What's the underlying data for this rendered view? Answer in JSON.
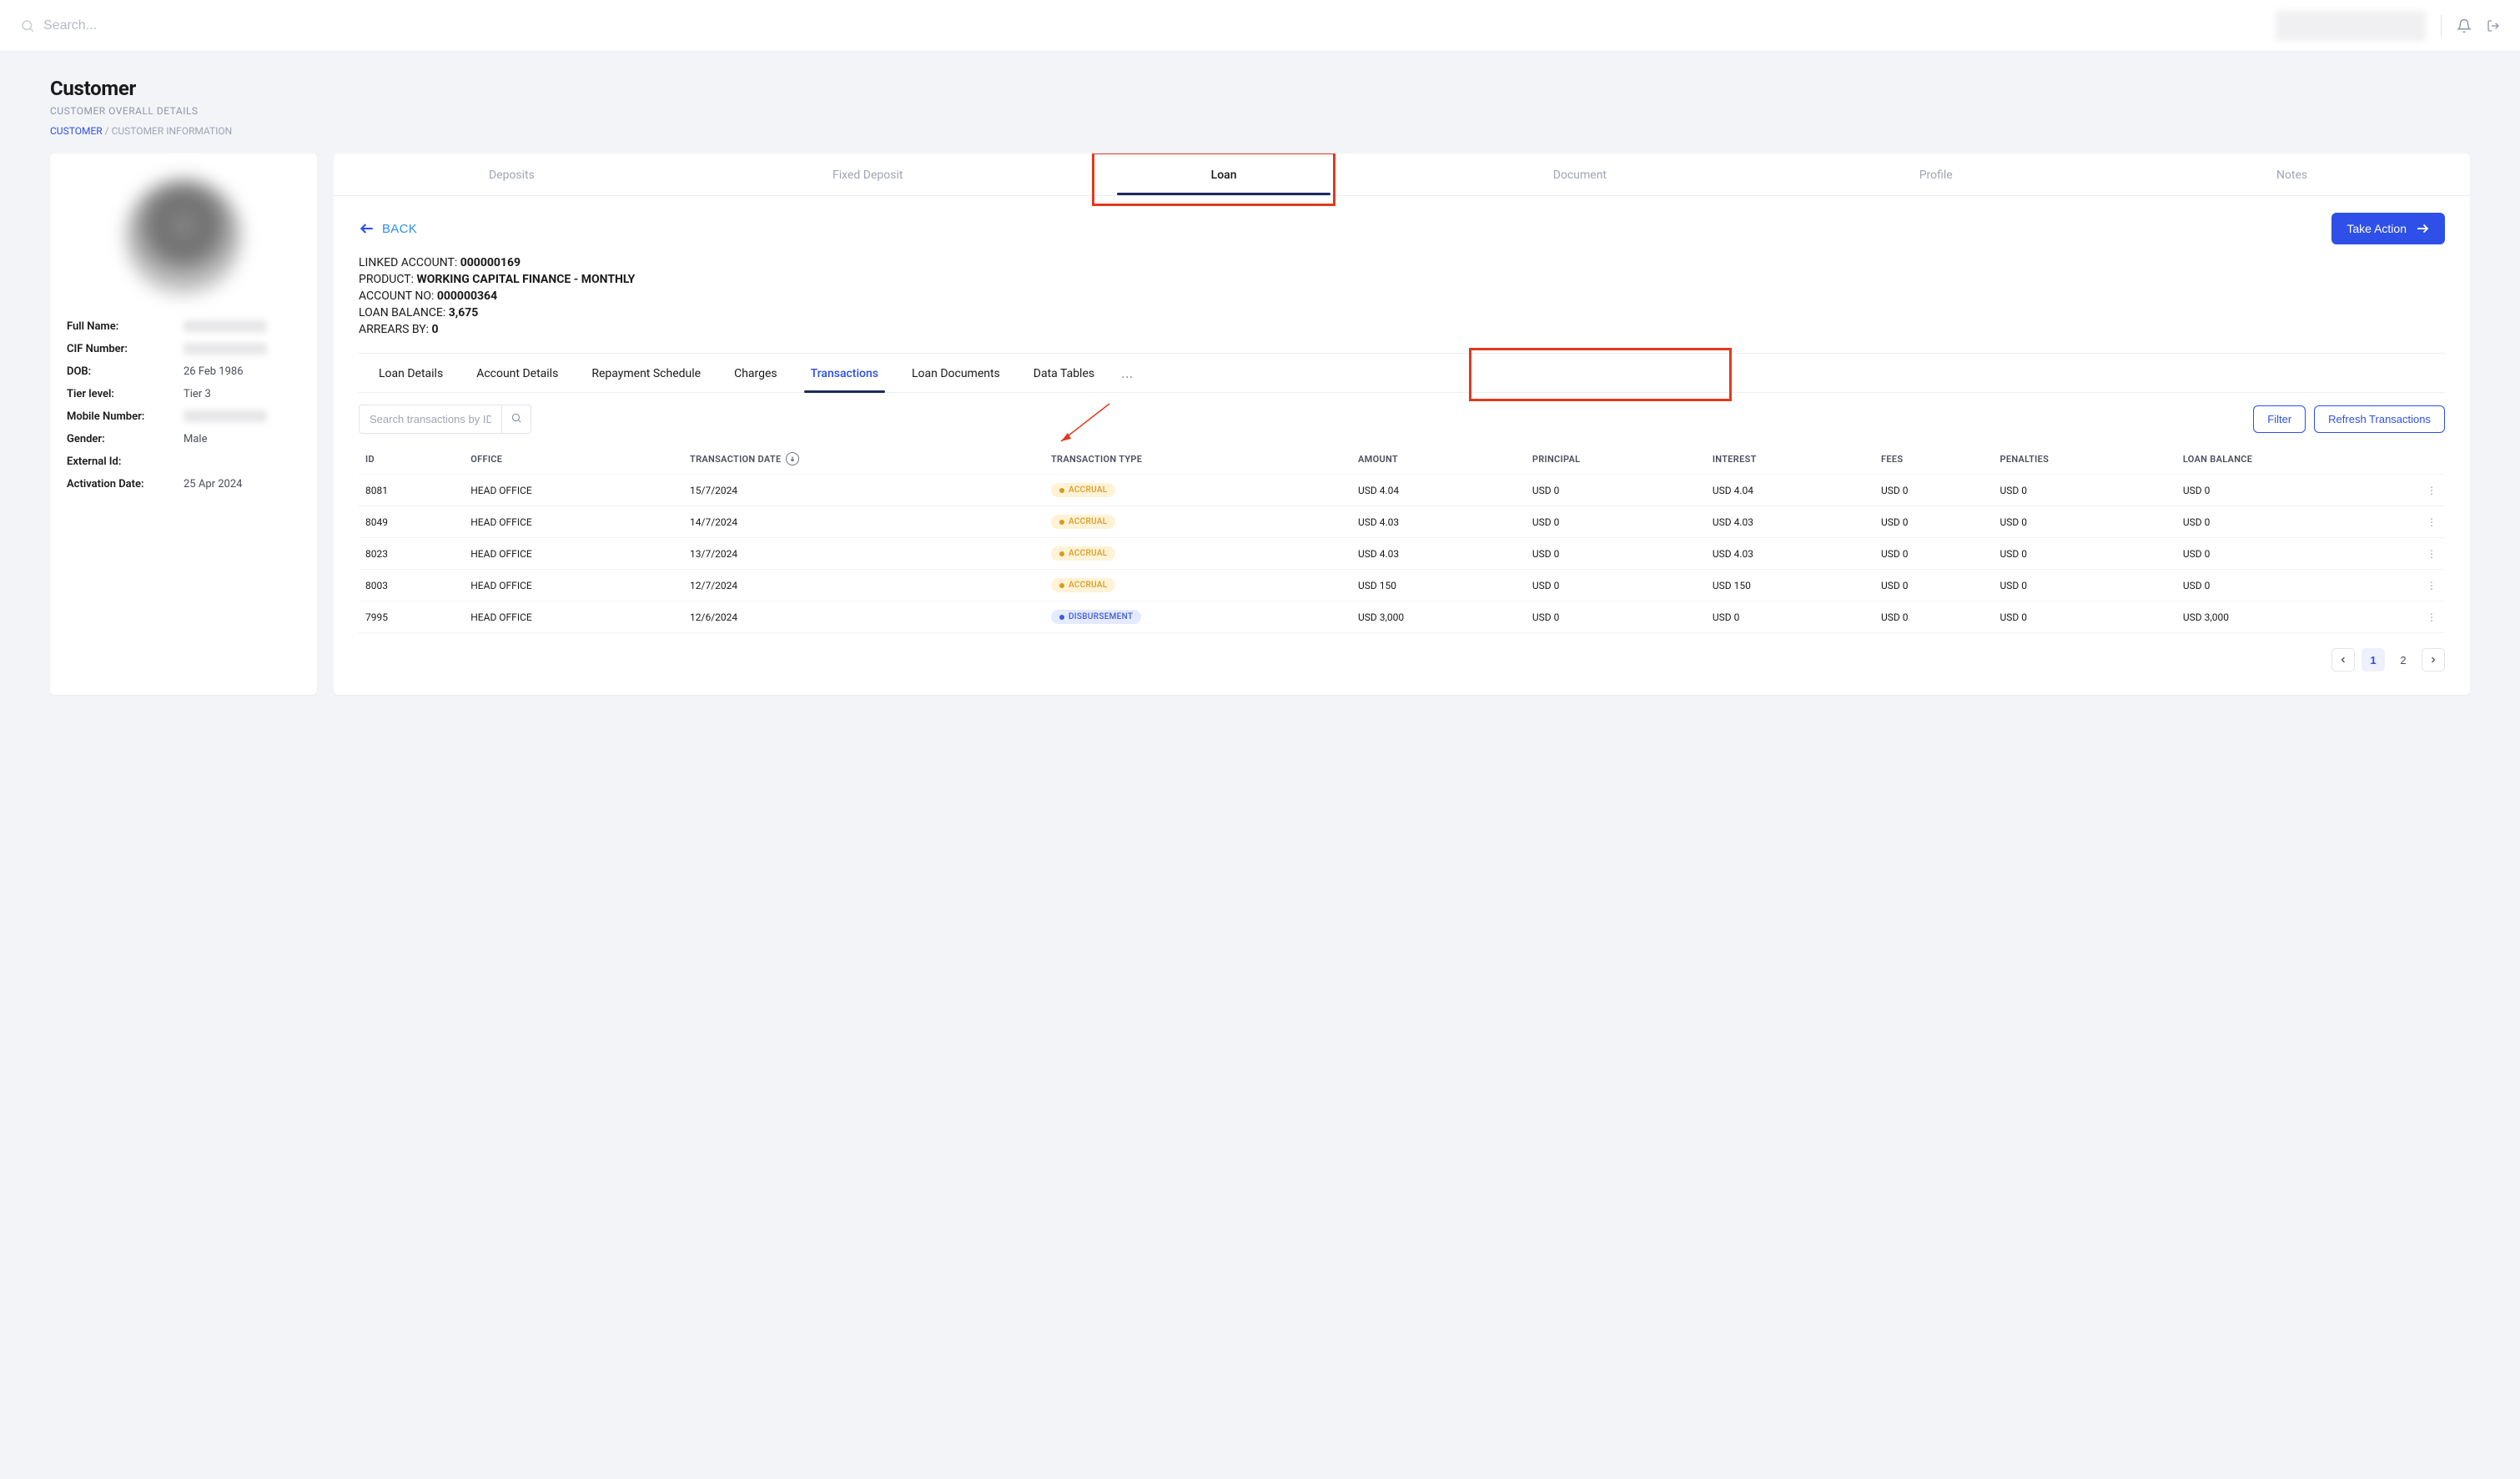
{
  "header": {
    "search_placeholder": "Search..."
  },
  "page": {
    "title": "Customer",
    "subtitle": "CUSTOMER OVERALL DETAILS"
  },
  "breadcrumb": {
    "link": "CUSTOMER",
    "sep": "/",
    "current": "CUSTOMER INFORMATION"
  },
  "sidebar": {
    "fields": [
      {
        "label": "Full Name:",
        "value": "",
        "blurred": true
      },
      {
        "label": "CIF Number:",
        "value": "",
        "blurred": true
      },
      {
        "label": "DOB:",
        "value": "26 Feb 1986",
        "blurred": false
      },
      {
        "label": "Tier level:",
        "value": "Tier 3",
        "blurred": false
      },
      {
        "label": "Mobile Number:",
        "value": "",
        "blurred": true
      },
      {
        "label": "Gender:",
        "value": "Male",
        "blurred": false
      },
      {
        "label": "External Id:",
        "value": "",
        "blurred": false
      },
      {
        "label": "Activation Date:",
        "value": "25 Apr 2024",
        "blurred": false
      }
    ]
  },
  "main_tabs": {
    "items": [
      "Deposits",
      "Fixed Deposit",
      "Loan",
      "Document",
      "Profile",
      "Notes"
    ],
    "active_index": 2
  },
  "back_label": "BACK",
  "take_action_label": "Take Action",
  "loan_info": {
    "lines": [
      {
        "label": "LINKED ACCOUNT: ",
        "value": "000000169"
      },
      {
        "label": "PRODUCT: ",
        "value": "WORKING CAPITAL FINANCE - MONTHLY"
      },
      {
        "label": "ACCOUNT NO: ",
        "value": "000000364"
      },
      {
        "label": "LOAN BALANCE: ",
        "value": "3,675"
      },
      {
        "label": "ARREARS BY: ",
        "value": "0"
      }
    ]
  },
  "sub_tabs": {
    "items": [
      "Loan Details",
      "Account Details",
      "Repayment Schedule",
      "Charges",
      "Transactions",
      "Loan Documents",
      "Data Tables"
    ],
    "active_index": 4,
    "more": "..."
  },
  "filter_bar": {
    "search_placeholder": "Search transactions by ID",
    "filter_label": "Filter",
    "refresh_label": "Refresh Transactions"
  },
  "table": {
    "columns": [
      "ID",
      "OFFICE",
      "TRANSACTION DATE",
      "TRANSACTION TYPE",
      "AMOUNT",
      "PRINCIPAL",
      "INTEREST",
      "FEES",
      "PENALTIES",
      "LOAN BALANCE"
    ],
    "rows": [
      {
        "id": "8081",
        "office": "HEAD OFFICE",
        "date": "15/7/2024",
        "type": "ACCRUAL",
        "type_style": "accrual",
        "amount": "USD 4.04",
        "principal": "USD 0",
        "interest": "USD 4.04",
        "fees": "USD 0",
        "penalties": "USD 0",
        "balance": "USD 0"
      },
      {
        "id": "8049",
        "office": "HEAD OFFICE",
        "date": "14/7/2024",
        "type": "ACCRUAL",
        "type_style": "accrual",
        "amount": "USD 4.03",
        "principal": "USD 0",
        "interest": "USD 4.03",
        "fees": "USD 0",
        "penalties": "USD 0",
        "balance": "USD 0"
      },
      {
        "id": "8023",
        "office": "HEAD OFFICE",
        "date": "13/7/2024",
        "type": "ACCRUAL",
        "type_style": "accrual",
        "amount": "USD 4.03",
        "principal": "USD 0",
        "interest": "USD 4.03",
        "fees": "USD 0",
        "penalties": "USD 0",
        "balance": "USD 0"
      },
      {
        "id": "8003",
        "office": "HEAD OFFICE",
        "date": "12/7/2024",
        "type": "ACCRUAL",
        "type_style": "accrual",
        "amount": "USD 150",
        "principal": "USD 0",
        "interest": "USD 150",
        "fees": "USD 0",
        "penalties": "USD 0",
        "balance": "USD 0"
      },
      {
        "id": "7995",
        "office": "HEAD OFFICE",
        "date": "12/6/2024",
        "type": "DISBURSEMENT",
        "type_style": "disb",
        "amount": "USD 3,000",
        "principal": "USD 0",
        "interest": "USD 0",
        "fees": "USD 0",
        "penalties": "USD 0",
        "balance": "USD 3,000"
      }
    ]
  },
  "pagination": {
    "pages": [
      "1",
      "2"
    ],
    "active_index": 0
  },
  "colors": {
    "primary": "#2e4fe8",
    "tab_underline": "#1e2a5e",
    "highlight_border": "#e13a1e",
    "badge_accrual_bg": "#fff2d6",
    "badge_accrual_fg": "#d99a1f",
    "badge_disb_bg": "#e4eaff",
    "badge_disb_fg": "#3e5bd6"
  }
}
